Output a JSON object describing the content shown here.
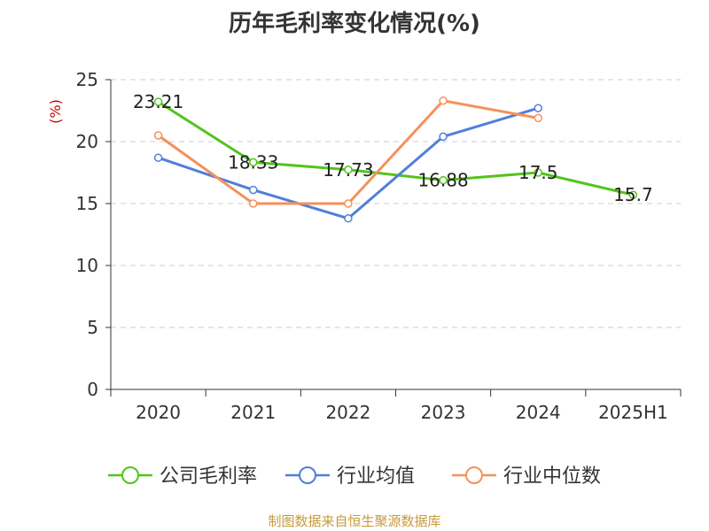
{
  "title": "历年毛利率变化情况(%)",
  "source": "制图数据来自恒生聚源数据库",
  "chart_data": {
    "type": "line",
    "title": "历年毛利率变化情况(%)",
    "ylabel": "(%)",
    "xlabel": "",
    "categories": [
      "2020",
      "2021",
      "2022",
      "2023",
      "2024",
      "2025H1"
    ],
    "ylim": [
      0,
      25
    ],
    "yticks": [
      "0",
      "5",
      "10",
      "15",
      "20",
      "25"
    ],
    "grid": true,
    "legend_position": "bottom",
    "series": [
      {
        "name": "公司毛利率",
        "color": "#52c41a",
        "values": [
          23.21,
          18.33,
          17.73,
          16.88,
          17.5,
          15.7
        ],
        "labels": [
          "23.21",
          "18.33",
          "17.73",
          "16.88",
          "17.5",
          "15.7"
        ]
      },
      {
        "name": "行业均值",
        "color": "#4f7fd9",
        "values": [
          18.7,
          16.1,
          13.8,
          20.4,
          22.7,
          null
        ]
      },
      {
        "name": "行业中位数",
        "color": "#f4915b",
        "values": [
          20.5,
          15.0,
          15.0,
          23.3,
          21.9,
          null
        ]
      }
    ]
  }
}
